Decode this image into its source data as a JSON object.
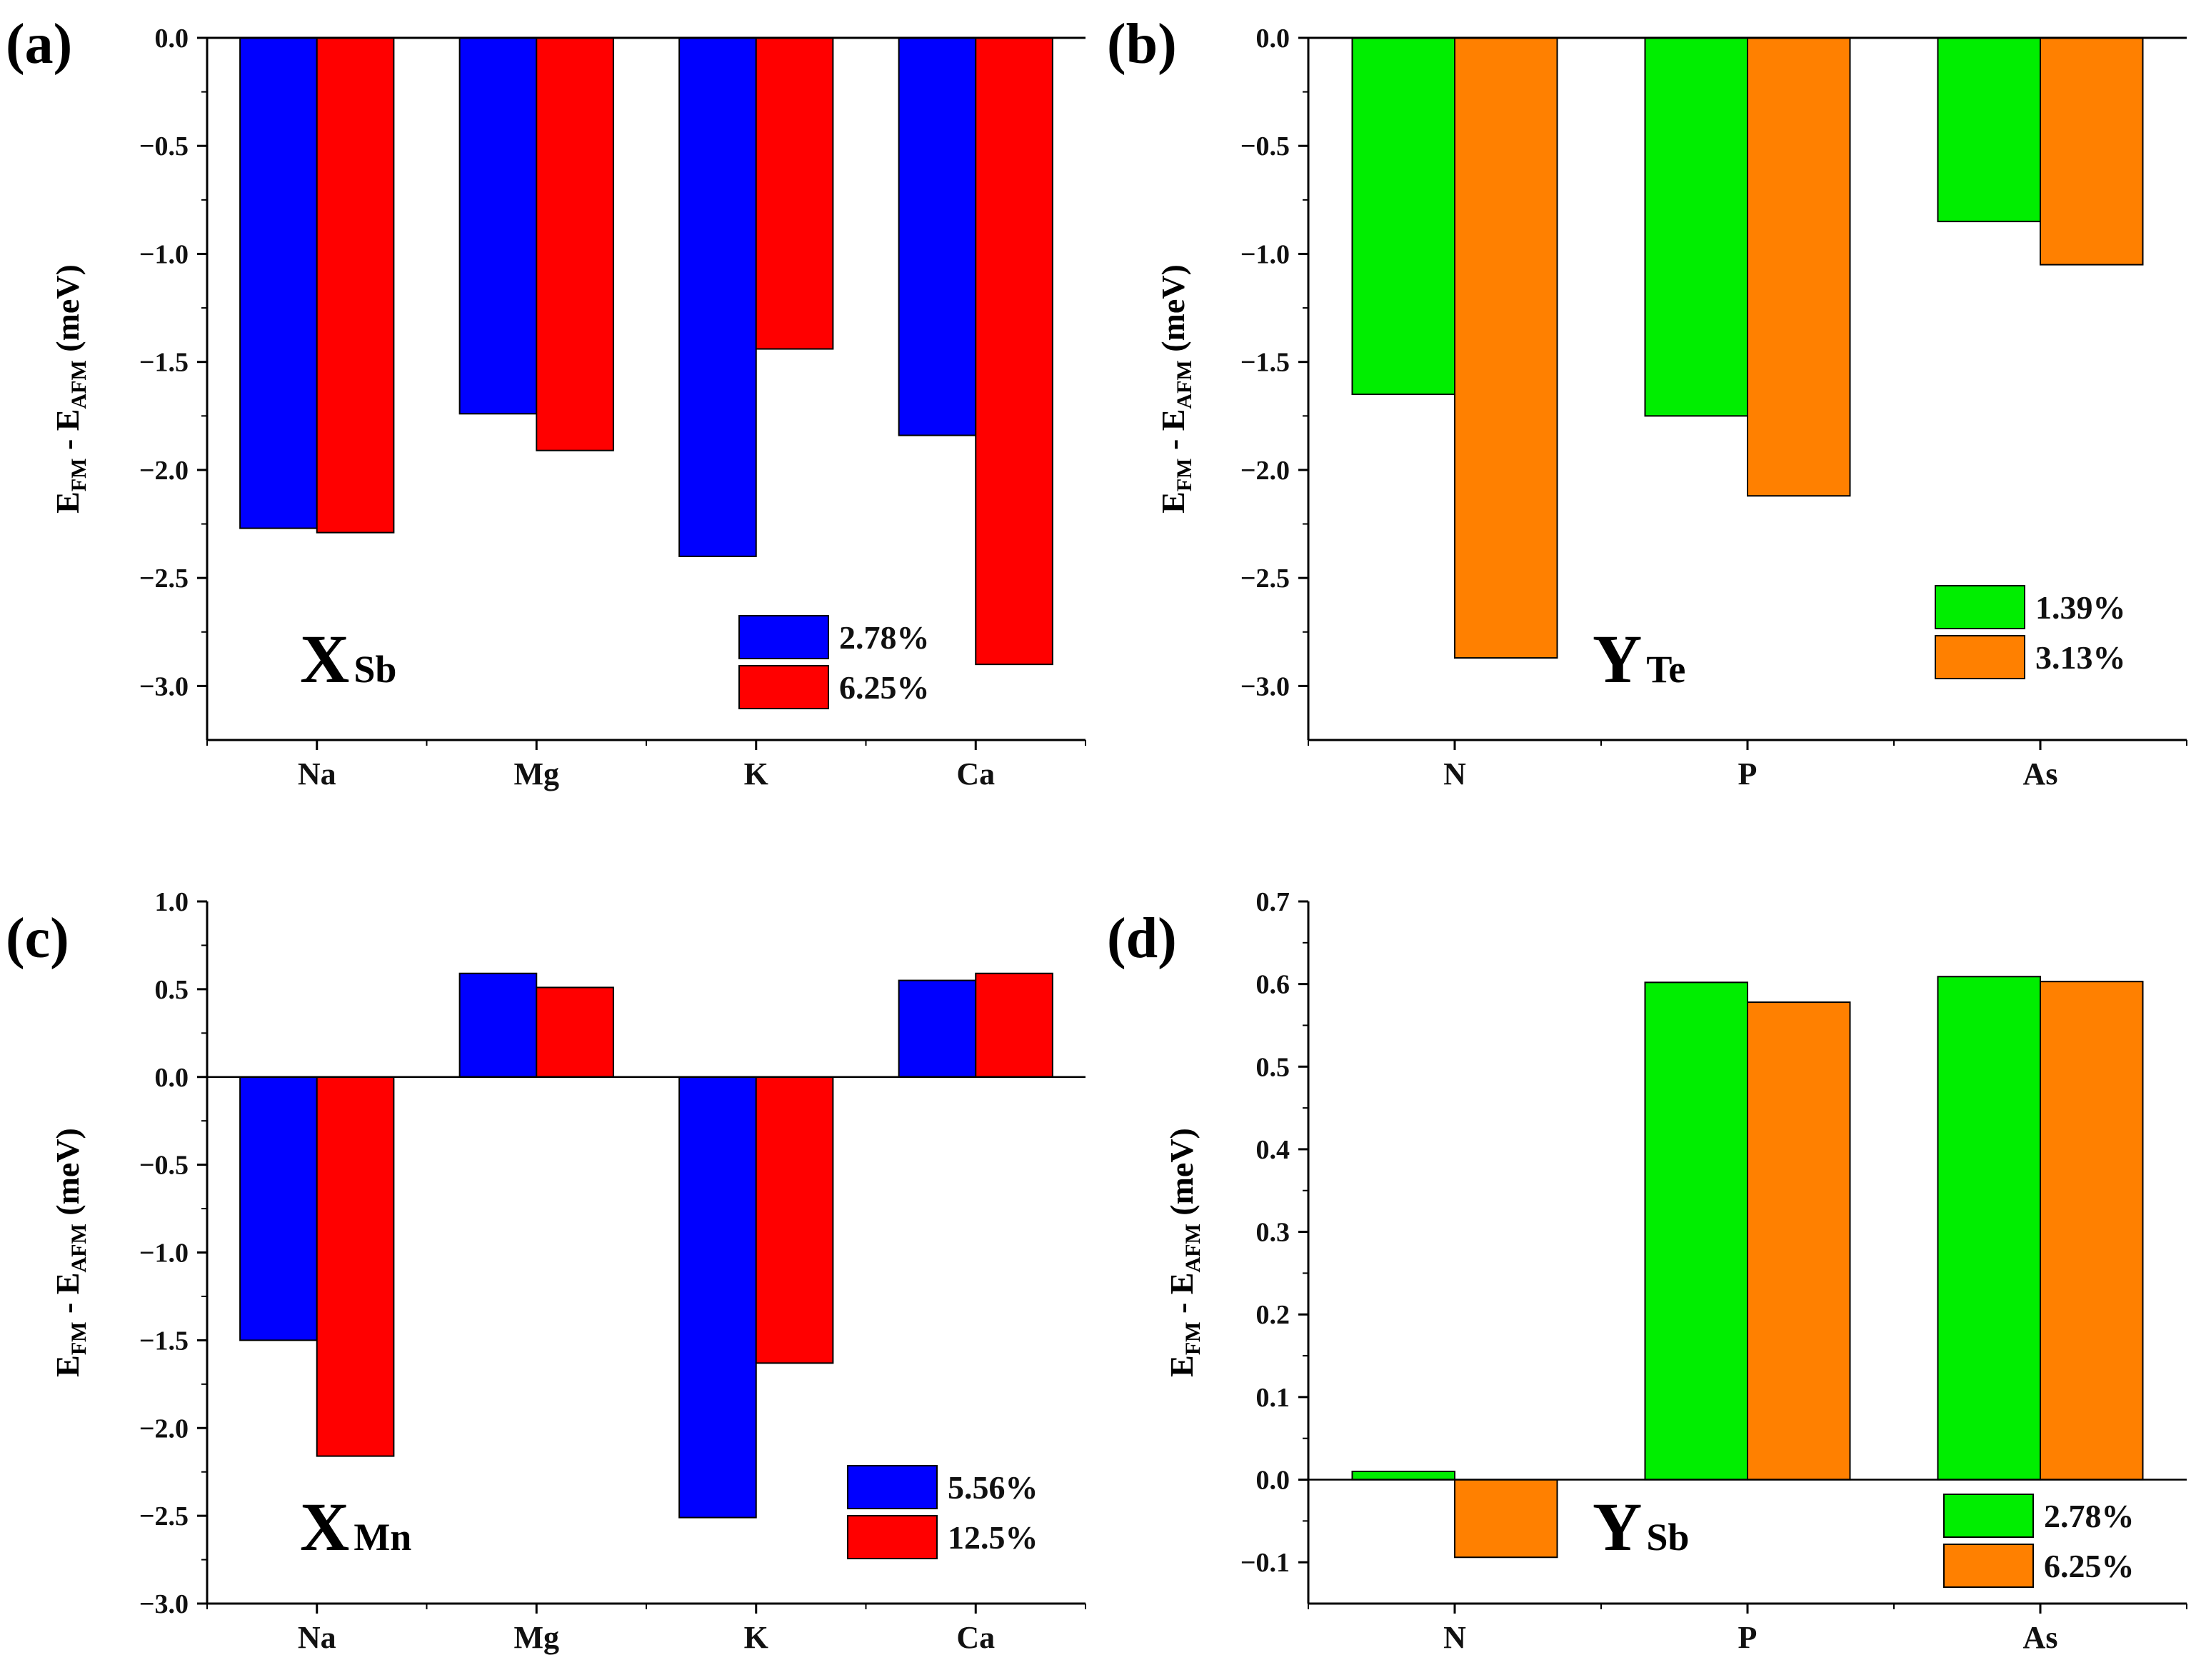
{
  "colors": {
    "blue": "#0000ff",
    "red": "#ff0000",
    "green": "#00ee00",
    "orange": "#ff8000",
    "axis": "#000000"
  },
  "chart_data": [
    {
      "panel": "(a)",
      "type": "bar",
      "tag": {
        "big": "X",
        "small": "Sb"
      },
      "ylabel": {
        "main1": "E",
        "sub1": "FM",
        "mid": " - E",
        "sub2": "AFM",
        "end": " (meV)"
      },
      "categories": [
        "Na",
        "Mg",
        "K",
        "Ca"
      ],
      "ylim": [
        -3.25,
        0
      ],
      "ticks": [
        0,
        -0.5,
        -1,
        -1.5,
        -2,
        -2.5,
        -3
      ],
      "tick_labels": [
        "0.0",
        "−0.5",
        "−1.0",
        "−1.5",
        "−2.0",
        "−2.5",
        "−3.0"
      ],
      "legend_position": "bottom-right",
      "series": [
        {
          "name": "2.78%",
          "color": "#0000ff",
          "values": [
            -2.27,
            -1.74,
            -2.4,
            -1.84
          ]
        },
        {
          "name": "6.25%",
          "color": "#ff0000",
          "values": [
            -2.29,
            -1.91,
            -1.44,
            -2.9
          ]
        }
      ]
    },
    {
      "panel": "(b)",
      "type": "bar",
      "tag": {
        "big": "Y",
        "small": "Te"
      },
      "ylabel": {
        "main1": "E",
        "sub1": "FM",
        "mid": " - E",
        "sub2": "AFM",
        "end": " (meV)"
      },
      "categories": [
        "N",
        "P",
        "As"
      ],
      "ylim": [
        -3.25,
        0
      ],
      "ticks": [
        0,
        -0.5,
        -1,
        -1.5,
        -2,
        -2.5,
        -3
      ],
      "tick_labels": [
        "0.0",
        "−0.5",
        "−1.0",
        "−1.5",
        "−2.0",
        "−2.5",
        "−3.0"
      ],
      "legend_position": "bottom-right",
      "series": [
        {
          "name": "1.39%",
          "color": "#00ee00",
          "values": [
            -1.65,
            -1.75,
            -0.85
          ]
        },
        {
          "name": "3.13%",
          "color": "#ff8000",
          "values": [
            -2.87,
            -2.12,
            -1.05
          ]
        }
      ]
    },
    {
      "panel": "(c)",
      "type": "bar",
      "tag": {
        "big": "X",
        "small": "Mn"
      },
      "ylabel": {
        "main1": "E",
        "sub1": "FM",
        "mid": " - E",
        "sub2": "AFM",
        "end": " (meV)"
      },
      "categories": [
        "Na",
        "Mg",
        "K",
        "Ca"
      ],
      "ylim": [
        -3.0,
        1.0
      ],
      "ticks": [
        1,
        0.5,
        0,
        -0.5,
        -1,
        -1.5,
        -2,
        -2.5,
        -3
      ],
      "tick_labels": [
        "1.0",
        "0.5",
        "0.0",
        "−0.5",
        "−1.0",
        "−1.5",
        "−2.0",
        "−2.5",
        "−3.0"
      ],
      "legend_position": "bottom-right",
      "series": [
        {
          "name": "5.56%",
          "color": "#0000ff",
          "values": [
            -1.5,
            0.59,
            -2.51,
            0.55
          ]
        },
        {
          "name": "12.5%",
          "color": "#ff0000",
          "values": [
            -2.16,
            0.51,
            -1.63,
            0.59
          ]
        }
      ]
    },
    {
      "panel": "(d)",
      "type": "bar",
      "tag": {
        "big": "Y",
        "small": "Sb"
      },
      "ylabel": {
        "main1": "E",
        "sub1": "FM",
        "mid": " - E",
        "sub2": "AFM",
        "end": " (meV)"
      },
      "categories": [
        "N",
        "P",
        "As"
      ],
      "ylim": [
        -0.15,
        0.7
      ],
      "ticks": [
        0.7,
        0.6,
        0.5,
        0.4,
        0.3,
        0.2,
        0.1,
        0,
        -0.1
      ],
      "tick_labels": [
        "0.7",
        "0.6",
        "0.5",
        "0.4",
        "0.3",
        "0.2",
        "0.1",
        "0.0",
        "−0.1"
      ],
      "legend_position": "bottom-right",
      "series": [
        {
          "name": "2.78%",
          "color": "#00ee00",
          "values": [
            0.01,
            0.602,
            0.609
          ]
        },
        {
          "name": "6.25%",
          "color": "#ff8000",
          "values": [
            -0.094,
            0.578,
            0.603
          ]
        }
      ]
    }
  ]
}
